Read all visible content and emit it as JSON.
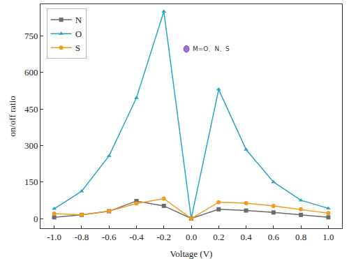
{
  "chart_data": {
    "type": "line",
    "x_label": "Voltage (V)",
    "y_label": "on/off ratio",
    "x": [
      -1.0,
      -0.8,
      -0.6,
      -0.4,
      -0.2,
      0.0,
      0.2,
      0.4,
      0.6,
      0.8,
      1.0
    ],
    "series": [
      {
        "name": "N",
        "color": "#6b6b6b",
        "marker": "square",
        "line_style": "solid",
        "values": [
          5,
          15,
          30,
          72,
          52,
          0,
          38,
          33,
          25,
          15,
          5
        ]
      },
      {
        "name": "O",
        "color": "#2aa5c2",
        "marker": "triangle-up",
        "line_style": "solid",
        "values": [
          40,
          112,
          257,
          495,
          850,
          0,
          530,
          283,
          150,
          75,
          42
        ]
      },
      {
        "name": "S",
        "color": "#f39a1e",
        "marker": "circle",
        "line_style": "solid",
        "values": [
          20,
          15,
          30,
          62,
          82,
          0,
          67,
          63,
          52,
          38,
          22
        ]
      }
    ],
    "xlim": [
      -1.1,
      1.1
    ],
    "xticks": [
      {
        "value": -1.0,
        "label": "-1.0"
      },
      {
        "value": -0.8,
        "label": "-0.8"
      },
      {
        "value": -0.6,
        "label": "-0.6"
      },
      {
        "value": -0.4,
        "label": "-0.4"
      },
      {
        "value": -0.2,
        "label": "-0.2"
      },
      {
        "value": 0.0,
        "label": "0.0"
      },
      {
        "value": 0.2,
        "label": "0.2"
      },
      {
        "value": 0.4,
        "label": "0.4"
      },
      {
        "value": 0.6,
        "label": "0.6"
      },
      {
        "value": 0.8,
        "label": "0.8"
      },
      {
        "value": 1.0,
        "label": "1.0"
      }
    ],
    "ylim": [
      -40,
      880
    ],
    "yticks": [
      0,
      150,
      300,
      450,
      600,
      750
    ],
    "grid": false,
    "legend": "upper left",
    "annotations": [
      "M=O、N、S"
    ]
  }
}
